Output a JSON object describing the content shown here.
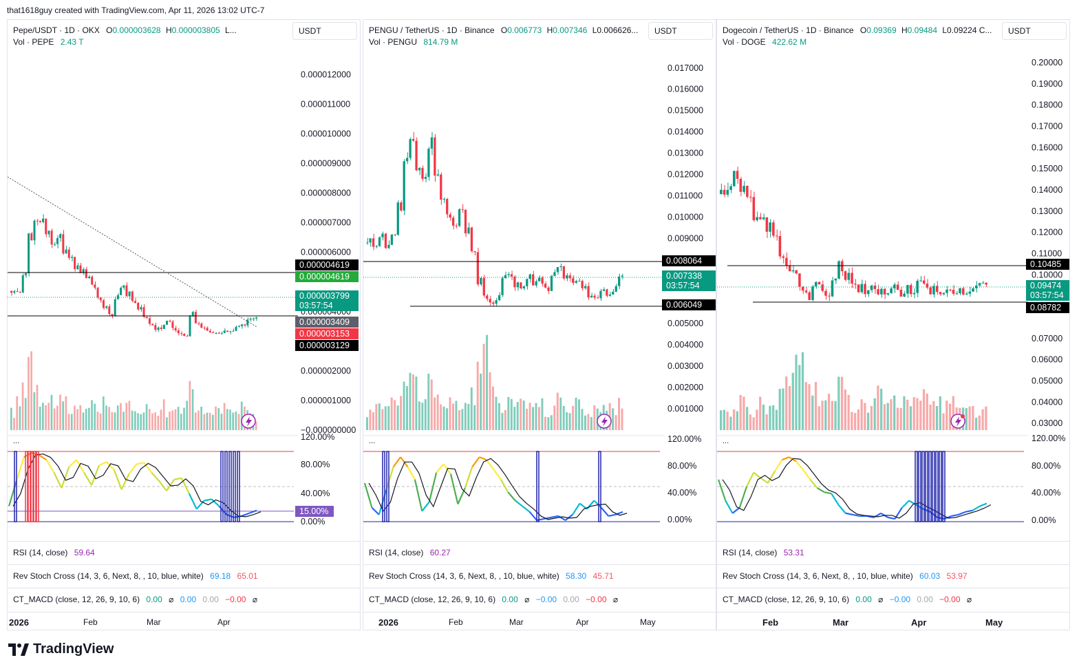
{
  "header": "that1618guy created with TradingView.com, Apr 11, 2026 13:02 UTC-7",
  "logo_text": "TradingView",
  "colors": {
    "up": "#089981",
    "down": "#f23645",
    "up_vol": "#7fcdbb",
    "down_vol": "#f7a9a9",
    "line": "#131722",
    "rsi_top": "#f23645",
    "rsi_bottom": "#1e22aa",
    "band": "#1e22aa",
    "trend": "#555555"
  },
  "panels": [
    {
      "id": "pepe",
      "title": "Pepe/USDT · 1D · OKX",
      "o_label": "O",
      "o_val": "0.000003628",
      "h_label": "H",
      "h_val": "0.000003805",
      "trail": "L...",
      "vol_label": "Vol · PEPE",
      "vol_val": "2.43 T",
      "currency": "USDT",
      "dots": "...",
      "rsi_label": "RSI (14, close)",
      "rsi_val": "59.64",
      "stoch_label": "Rev Stoch Cross (14, 3, 6, Next, 8, , 10, blue, white)",
      "stoch_v1": "69.18",
      "stoch_v2": "65.01",
      "macd_label": "CT_MACD (close, 12, 26, 9, 10, 6)",
      "macd_v1": "0.00",
      "macd_sym1": "⌀",
      "macd_v2": "0.00",
      "macd_v3": "0.00",
      "macd_v4": "−0.00",
      "macd_sym2": "⌀",
      "x_labels": [
        {
          "t": "2026",
          "bold": true
        },
        {
          "t": "Feb"
        },
        {
          "t": "Mar"
        },
        {
          "t": "Apr"
        }
      ],
      "osc_labels": [
        "120.00%",
        "80.00%",
        "40.00%",
        "0.00%"
      ],
      "chart_data": {
        "type": "candlestick",
        "y_ticks": [
          "0.000012000",
          "0.000011000",
          "0.000010000",
          "0.000009000",
          "0.000008000",
          "0.000007000",
          "0.000006000",
          "0.000004000",
          "0.000002000",
          "0.000001000",
          "−0.000000000"
        ],
        "y_tick_values": [
          1.2e-05,
          1.1e-05,
          1e-05,
          9e-06,
          8e-06,
          7e-06,
          6e-06,
          4e-06,
          2e-06,
          1e-06,
          0
        ],
        "ylim": [
          0,
          1.28e-05
        ],
        "close_path": [
          4.7,
          4.6,
          5.2,
          6.5,
          7.2,
          7.0,
          6.6,
          6.3,
          6.5,
          6.1,
          5.8,
          5.5,
          5.3,
          5.1,
          4.8,
          4.4,
          4.1,
          3.9,
          4.5,
          4.8,
          4.6,
          4.4,
          4.1,
          3.8,
          3.6,
          3.45,
          3.5,
          3.7,
          3.4,
          3.3,
          3.2,
          3.9,
          3.6,
          3.5,
          3.3,
          3.25,
          3.35,
          3.4,
          3.3,
          3.45,
          3.55,
          3.7,
          3.8
        ],
        "lines": [
          {
            "value": "0.000004619"
          },
          {
            "value": "0.000003129"
          }
        ],
        "trendline": [
          9.0,
          2.4
        ],
        "labels": [
          {
            "text": "0.000004619",
            "bg": "#000000",
            "fg": "#ffffff"
          },
          {
            "text": "0.000004619",
            "bg": "#22ab39",
            "fg": "#ffffff"
          },
          {
            "text": "0.000003799",
            "text2": "03:57:54",
            "bg": "#089981",
            "fg": "#ffffff"
          },
          {
            "text": "0.000003409",
            "bg": "#5d606b",
            "fg": "#ffffff"
          },
          {
            "text": "0.000003153",
            "bg": "#f23645",
            "fg": "#ffffff"
          },
          {
            "text": "0.000003129",
            "bg": "#000000",
            "fg": "#ffffff"
          }
        ],
        "volume_peaks": [
          0.2,
          0.3,
          0.5,
          0.9,
          0.6,
          0.4,
          0.3,
          0.35,
          0.3,
          0.3,
          0.2,
          0.3,
          0.25,
          0.2,
          0.3,
          0.25,
          0.35,
          0.2,
          0.3,
          0.3,
          0.25,
          0.2,
          0.25,
          0.3,
          0.2,
          0.25,
          0.3,
          0.2,
          0.25,
          0.2,
          0.3,
          0.7,
          0.3,
          0.2,
          0.2,
          0.25,
          0.2,
          0.25,
          0.2,
          0.2,
          0.25,
          0.2,
          0.15
        ],
        "oscillator": {
          "pct_label": "15.00%",
          "upper": 100,
          "lower": 15,
          "stoch": [
            22,
            58,
            92,
            98,
            95,
            88,
            70,
            48,
            78,
            88,
            70,
            52,
            80,
            85,
            74,
            46,
            68,
            82,
            84,
            70,
            58,
            44,
            60,
            62,
            40,
            18,
            30,
            32,
            22,
            10,
            6,
            8,
            12,
            16
          ]
        }
      }
    },
    {
      "id": "pengu",
      "title": "PENGU / TetherUS · 1D · Binance",
      "o_label": "O",
      "o_val": "0.006773",
      "h_label": "H",
      "h_val": "0.007346",
      "trail": "L0.006626...",
      "vol_label": "Vol · PENGU",
      "vol_val": "814.79 M",
      "currency": "USDT",
      "dots": "...",
      "rsi_label": "RSI (14, close)",
      "rsi_val": "60.27",
      "stoch_label": "Rev Stoch Cross (14, 3, 6, Next, 8, , 10, blue, white)",
      "stoch_v1": "58.30",
      "stoch_v2": "45.71",
      "macd_label": "CT_MACD (close, 12, 26, 9, 10, 6)",
      "macd_v1": "0.00",
      "macd_sym1": "⌀",
      "macd_v2": "−0.00",
      "macd_v3": "0.00",
      "macd_v4": "−0.00",
      "macd_sym2": "⌀",
      "x_labels": [
        {
          "t": "2026",
          "bold": true
        },
        {
          "t": "Feb"
        },
        {
          "t": "Mar"
        },
        {
          "t": "Apr"
        },
        {
          "t": "May"
        }
      ],
      "osc_labels": [
        "120.00%",
        "80.00%",
        "40.00%",
        "0.00%"
      ],
      "chart_data": {
        "type": "candlestick",
        "y_ticks": [
          "0.017000",
          "0.016000",
          "0.015000",
          "0.014000",
          "0.013000",
          "0.012000",
          "0.011000",
          "0.010000",
          "0.009000",
          "0.005000",
          "0.004000",
          "0.003000",
          "0.002000",
          "0.001000"
        ],
        "y_tick_values": [
          0.017,
          0.016,
          0.015,
          0.014,
          0.013,
          0.012,
          0.011,
          0.01,
          0.009,
          0.005,
          0.004,
          0.003,
          0.002,
          0.001
        ],
        "ylim": [
          0,
          0.0178
        ],
        "close_path": [
          8.8,
          8.6,
          9.0,
          8.7,
          9.2,
          10.5,
          12.5,
          13.8,
          12.5,
          12.0,
          13.5,
          12.2,
          10.8,
          10.0,
          9.8,
          10.2,
          9.3,
          8.2,
          7.0,
          6.2,
          5.9,
          6.2,
          7.2,
          7.3,
          6.8,
          6.6,
          7.2,
          6.9,
          7.0,
          6.6,
          7.4,
          7.8,
          7.2,
          7.0,
          7.1,
          6.6,
          6.2,
          6.3,
          6.7,
          6.4,
          6.6,
          7.3
        ],
        "lines": [
          {
            "value": "0.008064"
          },
          {
            "value": "0.006049"
          }
        ],
        "labels": [
          {
            "text": "0.008064",
            "bg": "#000000",
            "fg": "#ffffff"
          },
          {
            "text": "0.007338",
            "text2": "03:57:54",
            "bg": "#089981",
            "fg": "#ffffff"
          },
          {
            "text": "0.006049",
            "bg": "#000000",
            "fg": "#ffffff"
          }
        ],
        "volume_peaks": [
          0.2,
          0.25,
          0.3,
          0.35,
          0.3,
          0.4,
          0.5,
          0.7,
          0.5,
          0.4,
          0.6,
          0.4,
          0.3,
          0.35,
          0.3,
          0.3,
          0.3,
          0.4,
          0.6,
          0.9,
          0.5,
          0.4,
          0.3,
          0.35,
          0.3,
          0.4,
          0.25,
          0.3,
          0.3,
          0.2,
          0.25,
          0.4,
          0.3,
          0.25,
          0.3,
          0.2,
          0.2,
          0.25,
          0.3,
          0.25,
          0.2,
          0.3
        ],
        "oscillator": {
          "upper": 100,
          "lower": 0,
          "stoch": [
            55,
            20,
            10,
            45,
            78,
            92,
            78,
            60,
            15,
            28,
            70,
            82,
            68,
            25,
            48,
            78,
            92,
            88,
            74,
            60,
            42,
            30,
            22,
            14,
            2,
            4,
            6,
            8,
            2,
            10,
            26,
            18,
            30,
            20,
            8,
            10,
            14
          ]
        }
      }
    },
    {
      "id": "doge",
      "title": "Dogecoin / TetherUS · 1D · Binance",
      "o_label": "O",
      "o_val": "0.09369",
      "h_label": "H",
      "h_val": "0.09484",
      "trail": "L0.09224   C...",
      "vol_label": "Vol · DOGE",
      "vol_val": "422.62 M",
      "currency": "USDT",
      "dots": "...",
      "rsi_label": "RSI (14, close)",
      "rsi_val": "53.31",
      "stoch_label": "Rev Stoch Cross (14, 3, 6, Next, 8, , 10, blue, white)",
      "stoch_v1": "60.03",
      "stoch_v2": "53.97",
      "macd_label": "CT_MACD (close, 12, 26, 9, 10, 6)",
      "macd_v1": "0.00",
      "macd_sym1": "⌀",
      "macd_v2": "−0.00",
      "macd_v3": "0.00",
      "macd_v4": "−0.00",
      "macd_sym2": "⌀",
      "x_labels": [
        {
          "t": "Feb",
          "bold": true
        },
        {
          "t": "Mar",
          "bold": true
        },
        {
          "t": "Apr",
          "bold": true
        },
        {
          "t": "May",
          "bold": true
        }
      ],
      "osc_labels": [
        "120.00%",
        "80.00%",
        "40.00%",
        "0.00%"
      ],
      "chart_data": {
        "type": "candlestick",
        "y_ticks": [
          "0.20000",
          "0.19000",
          "0.18000",
          "0.17000",
          "0.16000",
          "0.15000",
          "0.14000",
          "0.13000",
          "0.12000",
          "0.11000",
          "0.10000",
          "0.07000",
          "0.06000",
          "0.05000",
          "0.04000",
          "0.03000"
        ],
        "y_tick_values": [
          0.2,
          0.19,
          0.18,
          0.17,
          0.16,
          0.15,
          0.14,
          0.13,
          0.12,
          0.11,
          0.1,
          0.07,
          0.06,
          0.05,
          0.04,
          0.03
        ],
        "ylim": [
          0.0268,
          0.2055
        ],
        "close_path": [
          0.138,
          0.142,
          0.148,
          0.14,
          0.135,
          0.128,
          0.124,
          0.122,
          0.118,
          0.11,
          0.104,
          0.1,
          0.094,
          0.09,
          0.096,
          0.094,
          0.092,
          0.098,
          0.104,
          0.099,
          0.096,
          0.094,
          0.092,
          0.095,
          0.093,
          0.092,
          0.094,
          0.091,
          0.093,
          0.092,
          0.096,
          0.094,
          0.093,
          0.092,
          0.091,
          0.092,
          0.093,
          0.092,
          0.093,
          0.094,
          0.095
        ],
        "lines": [
          {
            "value": "0.10485"
          },
          {
            "value": "0.08782"
          }
        ],
        "labels": [
          {
            "text": "0.10485",
            "bg": "#000000",
            "fg": "#ffffff"
          },
          {
            "text": "0.09474",
            "text2": "03:57:54",
            "bg": "#089981",
            "fg": "#ffffff"
          },
          {
            "text": "0.08782",
            "bg": "#000000",
            "fg": "#ffffff"
          }
        ],
        "volume_peaks": [
          0.25,
          0.2,
          0.25,
          0.3,
          0.25,
          0.2,
          0.3,
          0.25,
          0.35,
          0.4,
          0.5,
          0.7,
          0.9,
          0.6,
          0.45,
          0.4,
          0.35,
          0.3,
          0.5,
          0.4,
          0.3,
          0.3,
          0.25,
          0.35,
          0.4,
          0.3,
          0.3,
          0.25,
          0.45,
          0.3,
          0.3,
          0.35,
          0.25,
          0.3,
          0.25,
          0.3,
          0.2,
          0.25,
          0.3,
          0.2,
          0.2
        ],
        "oscillator": {
          "upper": 100,
          "lower": 0,
          "stoch": [
            60,
            30,
            12,
            20,
            50,
            70,
            62,
            55,
            72,
            88,
            92,
            86,
            74,
            60,
            48,
            42,
            40,
            24,
            12,
            10,
            8,
            8,
            6,
            12,
            6,
            4,
            20,
            30,
            24,
            18,
            14,
            6,
            4,
            8,
            10,
            14,
            16,
            22,
            26
          ]
        }
      }
    }
  ]
}
